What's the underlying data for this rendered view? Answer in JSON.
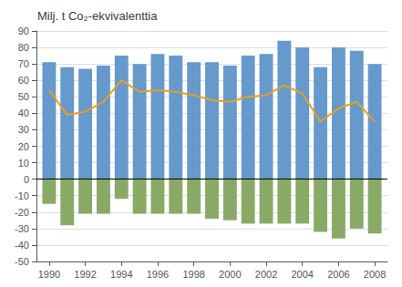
{
  "chart_data": {
    "type": "bar",
    "title": "Milj. t Co₂-ekvivalenttia",
    "x": [
      1990,
      1991,
      1992,
      1993,
      1994,
      1995,
      1996,
      1997,
      1998,
      1999,
      2000,
      2001,
      2002,
      2003,
      2004,
      2005,
      2006,
      2007,
      2008
    ],
    "series": [
      {
        "type": "bar",
        "color": "#6699CC",
        "values": [
          71,
          68,
          67,
          69,
          75,
          70,
          76,
          75,
          71,
          71,
          69,
          75,
          76,
          84,
          80,
          68,
          80,
          78,
          70
        ]
      },
      {
        "type": "bar",
        "color": "#88AA66",
        "values": [
          -15,
          -28,
          -21,
          -21,
          -12,
          -21,
          -21,
          -21,
          -21,
          -24,
          -25,
          -27,
          -27,
          -27,
          -27,
          -32,
          -36,
          -30,
          -33
        ]
      },
      {
        "type": "line",
        "color": "#E8A020",
        "values": [
          54,
          39,
          41,
          47,
          60,
          53,
          54,
          53,
          51,
          48,
          47,
          50,
          51,
          57,
          52,
          35,
          43,
          47,
          35
        ]
      }
    ],
    "xlim": [
      1989.3,
      2008.7
    ],
    "xticks": [
      1990,
      1992,
      1994,
      1996,
      1998,
      2000,
      2002,
      2004,
      2006,
      2008
    ],
    "ylim": [
      -50,
      90
    ],
    "yticks": [
      -50,
      -40,
      -30,
      -20,
      -10,
      0,
      10,
      20,
      30,
      40,
      50,
      60,
      70,
      80,
      90
    ],
    "grid": true
  }
}
